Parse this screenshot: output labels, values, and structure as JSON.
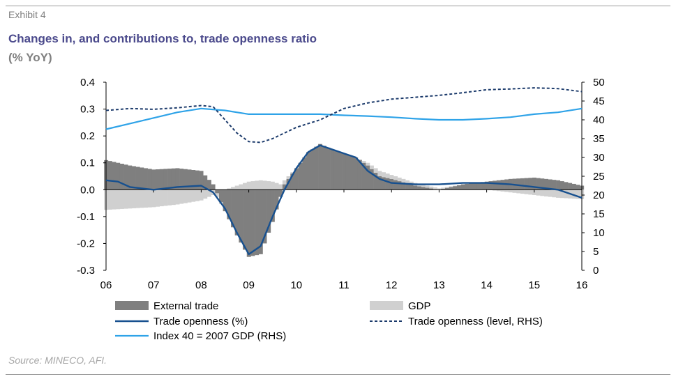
{
  "header": {
    "exhibit": "Exhibit 4",
    "title": "Changes in, and contributions to, trade openness ratio",
    "subtitle": "(% YoY)"
  },
  "footer": {
    "source": "Source: MINECO, AFI."
  },
  "colors": {
    "external_trade": "#7f7f7f",
    "gdp": "#d0d0d0",
    "trade_openness": "#17508f",
    "trade_openness_level": "#1b3a6b",
    "index_gdp": "#2fa3e8"
  },
  "chart_data": {
    "type": "bar",
    "x_tick_labels": [
      "06",
      "07",
      "08",
      "09",
      "10",
      "11",
      "12",
      "13",
      "14",
      "15",
      "16"
    ],
    "x_range": [
      2006,
      2016
    ],
    "y_left": {
      "range": [
        -0.3,
        0.4
      ],
      "ticks": [
        "0.4",
        "0.3",
        "0.2",
        "0.1",
        "0.0",
        "-0.1",
        "-0.2",
        "-0.3"
      ]
    },
    "y_right": {
      "range": [
        0,
        50
      ],
      "ticks": [
        "50",
        "45",
        "40",
        "35",
        "30",
        "25",
        "20",
        "15",
        "10",
        "5",
        "0"
      ]
    },
    "grid": false,
    "legend_position": "bottom",
    "legend": {
      "external_trade": "External trade",
      "gdp": "GDP",
      "trade_openness": "Trade openness (%)",
      "trade_openness_level": "Trade openness (level, RHS)",
      "index_gdp": "Index 40 = 2007 GDP (RHS)"
    },
    "series": [
      {
        "key": "external_trade",
        "type": "bar",
        "axis": "left",
        "x": [
          2006.0,
          2006.5,
          2007.0,
          2007.5,
          2008.0,
          2008.25,
          2008.5,
          2008.75,
          2009.0,
          2009.25,
          2009.5,
          2009.75,
          2010.0,
          2010.25,
          2010.5,
          2010.75,
          2011.0,
          2011.25,
          2011.5,
          2011.75,
          2012.0,
          2012.5,
          2013.0,
          2013.5,
          2014.0,
          2014.5,
          2015.0,
          2015.5,
          2016.0
        ],
        "values": [
          0.11,
          0.09,
          0.075,
          0.08,
          0.07,
          0.02,
          -0.08,
          -0.17,
          -0.25,
          -0.24,
          -0.12,
          0.02,
          0.08,
          0.14,
          0.17,
          0.15,
          0.135,
          0.12,
          0.09,
          0.05,
          0.04,
          0.015,
          0.0,
          0.02,
          0.03,
          0.04,
          0.045,
          0.035,
          0.015
        ]
      },
      {
        "key": "gdp",
        "type": "bar",
        "axis": "left",
        "x": [
          2006.0,
          2006.5,
          2007.0,
          2007.5,
          2008.0,
          2008.25,
          2008.5,
          2008.75,
          2009.0,
          2009.25,
          2009.5,
          2009.75,
          2010.0,
          2010.25,
          2010.5,
          2010.75,
          2011.0,
          2011.25,
          2011.5,
          2011.75,
          2012.0,
          2012.5,
          2013.0,
          2013.5,
          2014.0,
          2014.5,
          2015.0,
          2015.5,
          2016.0
        ],
        "values": [
          -0.075,
          -0.07,
          -0.065,
          -0.055,
          -0.04,
          -0.02,
          0.0,
          0.015,
          0.03,
          0.035,
          0.03,
          0.015,
          0.0,
          0.0,
          0.0,
          0.0,
          0.0,
          0.0,
          0.01,
          0.02,
          0.015,
          0.01,
          0.005,
          0.0,
          0.0,
          -0.01,
          -0.02,
          -0.03,
          -0.035
        ]
      },
      {
        "key": "trade_openness",
        "type": "line",
        "axis": "left",
        "x": [
          2006.0,
          2006.25,
          2006.5,
          2006.75,
          2007.0,
          2007.5,
          2008.0,
          2008.25,
          2008.5,
          2008.75,
          2009.0,
          2009.25,
          2009.5,
          2009.75,
          2010.0,
          2010.25,
          2010.5,
          2010.75,
          2011.0,
          2011.25,
          2011.5,
          2011.75,
          2012.0,
          2012.5,
          2013.0,
          2013.5,
          2014.0,
          2014.5,
          2015.0,
          2015.5,
          2016.0
        ],
        "values": [
          0.035,
          0.03,
          0.01,
          0.005,
          0.0,
          0.01,
          0.015,
          -0.01,
          -0.07,
          -0.16,
          -0.24,
          -0.21,
          -0.1,
          0.0,
          0.08,
          0.14,
          0.165,
          0.15,
          0.135,
          0.12,
          0.07,
          0.04,
          0.025,
          0.02,
          0.02,
          0.025,
          0.025,
          0.02,
          0.01,
          0.0,
          -0.03
        ]
      },
      {
        "key": "trade_openness_level",
        "type": "line",
        "axis": "right",
        "x": [
          2006.0,
          2006.5,
          2007.0,
          2007.5,
          2008.0,
          2008.25,
          2008.5,
          2008.75,
          2009.0,
          2009.25,
          2009.5,
          2009.75,
          2010.0,
          2010.5,
          2011.0,
          2011.5,
          2012.0,
          2012.5,
          2013.0,
          2013.5,
          2014.0,
          2014.5,
          2015.0,
          2015.5,
          2016.0
        ],
        "values": [
          42.5,
          43,
          42.8,
          43.2,
          43.8,
          43.5,
          40,
          36.5,
          34.2,
          34,
          35,
          36.5,
          38,
          40,
          43,
          44.5,
          45.5,
          46,
          46.5,
          47.2,
          48,
          48.2,
          48.5,
          48.3,
          47.5
        ]
      },
      {
        "key": "index_gdp",
        "type": "line",
        "axis": "right",
        "x": [
          2006.0,
          2006.5,
          2007.0,
          2007.5,
          2008.0,
          2008.5,
          2009.0,
          2009.5,
          2010.0,
          2010.5,
          2011.0,
          2011.5,
          2012.0,
          2012.5,
          2013.0,
          2013.5,
          2014.0,
          2014.5,
          2015.0,
          2015.5,
          2016.0
        ],
        "values": [
          37.5,
          39,
          40.5,
          42,
          43,
          42.5,
          41.5,
          41.5,
          41.5,
          41.5,
          41.2,
          41,
          40.7,
          40.3,
          40,
          40,
          40.3,
          40.7,
          41.5,
          42,
          43
        ]
      }
    ]
  }
}
